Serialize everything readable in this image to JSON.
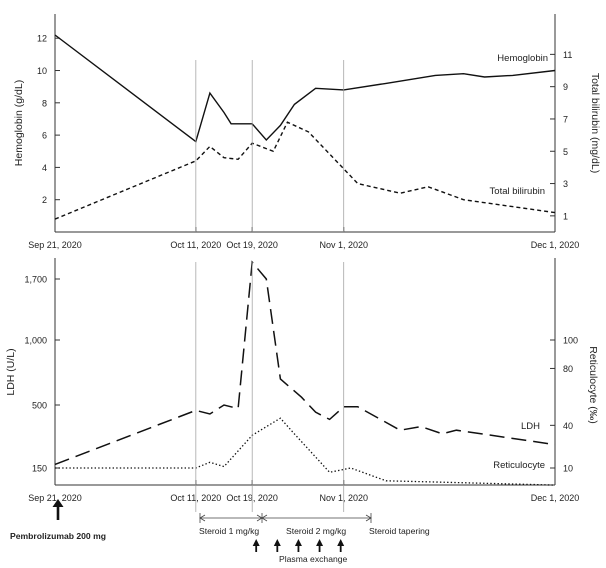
{
  "chart_data": [
    {
      "type": "line",
      "x_ticks": [
        "Sep 21, 2020",
        "Oct 11, 2020",
        "Oct 19, 2020",
        "Nov 1, 2020",
        "Dec 1, 2020"
      ],
      "xlim": [
        "2020-09-21",
        "2020-12-01"
      ],
      "ylabel": "Hemoglobin (g/dL)",
      "y2label": "Total bilirubin (mg/dL)",
      "ylim": [
        0,
        13.5
      ],
      "y_ticks": [
        2,
        4,
        6,
        8,
        10,
        12
      ],
      "y2lim": [
        0,
        13.5
      ],
      "y2_ticks": [
        1,
        3,
        5,
        7,
        9,
        11
      ],
      "series": [
        {
          "name": "Hemoglobin",
          "axis": "left",
          "style": "solid",
          "points": [
            [
              "2020-09-21",
              12.2
            ],
            [
              "2020-10-11",
              5.6
            ],
            [
              "2020-10-13",
              8.6
            ],
            [
              "2020-10-15",
              7.4
            ],
            [
              "2020-10-16",
              6.7
            ],
            [
              "2020-10-19",
              6.7
            ],
            [
              "2020-10-21",
              5.7
            ],
            [
              "2020-10-23",
              6.6
            ],
            [
              "2020-10-25",
              7.9
            ],
            [
              "2020-10-28",
              8.9
            ],
            [
              "2020-11-01",
              8.8
            ],
            [
              "2020-11-07",
              9.2
            ],
            [
              "2020-11-14",
              9.7
            ],
            [
              "2020-11-18",
              9.8
            ],
            [
              "2020-11-21",
              9.6
            ],
            [
              "2020-11-25",
              9.7
            ],
            [
              "2020-12-01",
              10.0
            ]
          ]
        },
        {
          "name": "Total bilirubin",
          "axis": "right",
          "style": "dashed",
          "points": [
            [
              "2020-09-21",
              0.8
            ],
            [
              "2020-10-11",
              4.4
            ],
            [
              "2020-10-13",
              5.3
            ],
            [
              "2020-10-15",
              4.6
            ],
            [
              "2020-10-17",
              4.5
            ],
            [
              "2020-10-19",
              5.5
            ],
            [
              "2020-10-22",
              5.0
            ],
            [
              "2020-10-24",
              6.8
            ],
            [
              "2020-10-27",
              6.2
            ],
            [
              "2020-11-03",
              3.0
            ],
            [
              "2020-11-09",
              2.4
            ],
            [
              "2020-11-13",
              2.8
            ],
            [
              "2020-11-18",
              2.0
            ],
            [
              "2020-12-01",
              1.2
            ]
          ]
        }
      ]
    },
    {
      "type": "line",
      "x_ticks": [
        "Sep 21, 2020",
        "Oct 11, 2020",
        "Oct 19, 2020",
        "Nov 1, 2020",
        "Dec 1, 2020"
      ],
      "xlim": [
        "2020-09-21",
        "2020-12-01"
      ],
      "ylabel": "LDH (U/L)",
      "y2label": "Reticulocyte (‰)",
      "y_ticks": [
        150,
        500,
        1000,
        1700
      ],
      "y_tick_labels": [
        "150",
        "500",
        "1,000",
        "1,700"
      ],
      "y2_ticks": [
        10,
        40,
        80,
        100
      ],
      "series": [
        {
          "name": "LDH",
          "axis": "left",
          "style": "long-dashed",
          "points": [
            [
              "2020-09-21",
              170
            ],
            [
              "2020-10-11",
              470
            ],
            [
              "2020-10-13",
              450
            ],
            [
              "2020-10-15",
              500
            ],
            [
              "2020-10-17",
              480
            ],
            [
              "2020-10-19",
              1780
            ],
            [
              "2020-10-21",
              1700
            ],
            [
              "2020-10-23",
              700
            ],
            [
              "2020-10-26",
              560
            ],
            [
              "2020-10-28",
              460
            ],
            [
              "2020-10-30",
              420
            ],
            [
              "2020-11-01",
              490
            ],
            [
              "2020-11-03",
              490
            ],
            [
              "2020-11-09",
              360
            ],
            [
              "2020-11-12",
              380
            ],
            [
              "2020-11-15",
              340
            ],
            [
              "2020-11-17",
              360
            ],
            [
              "2020-12-01",
              280
            ]
          ]
        },
        {
          "name": "Reticulocyte",
          "axis": "right",
          "style": "dotted",
          "points": [
            [
              "2020-09-21",
              10
            ],
            [
              "2020-10-11",
              10
            ],
            [
              "2020-10-13",
              14
            ],
            [
              "2020-10-15",
              11
            ],
            [
              "2020-10-19",
              33
            ],
            [
              "2020-10-23",
              45
            ],
            [
              "2020-10-25",
              34
            ],
            [
              "2020-10-30",
              7
            ],
            [
              "2020-11-02",
              10
            ],
            [
              "2020-11-07",
              1
            ],
            [
              "2020-11-15",
              0
            ],
            [
              "2020-12-01",
              -2
            ]
          ]
        }
      ]
    }
  ],
  "annotations": {
    "pembrolizumab": "Pembrolizumab 200 mg",
    "steroid_1": "Steroid 1 mg/kg",
    "steroid_2": "Steroid 2 mg/kg",
    "steroid_tapering": "Steroid tapering",
    "plasma_exchange": "Plasma exchange",
    "plasma_exchange_dates": [
      "2020-10-19",
      "2020-10-22",
      "2020-10-25",
      "2020-10-28",
      "2020-10-31"
    ]
  }
}
